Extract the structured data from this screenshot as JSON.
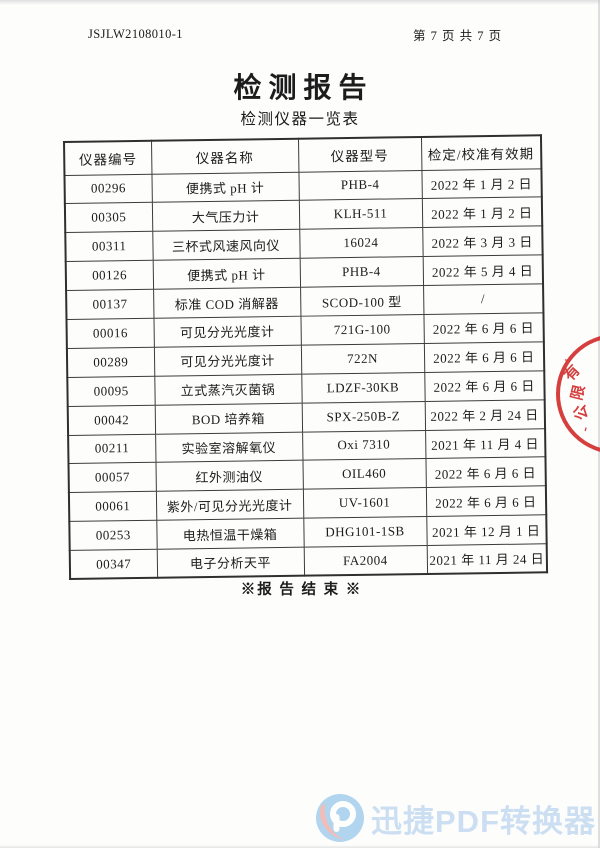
{
  "page": {
    "doc_code": "JSJLW2108010-1",
    "page_indicator": "第 7 页 共 7 页"
  },
  "title": "检测报告",
  "subtitle": "检测仪器一览表",
  "table": {
    "headers": [
      "仪器编号",
      "仪器名称",
      "仪器型号",
      "检定/校准有效期"
    ],
    "rows": [
      [
        "00296",
        "便携式 pH 计",
        "PHB-4",
        "2022 年 1 月 2 日"
      ],
      [
        "00305",
        "大气压力计",
        "KLH-511",
        "2022 年 1 月 2 日"
      ],
      [
        "00311",
        "三杯式风速风向仪",
        "16024",
        "2022 年 3 月 3 日"
      ],
      [
        "00126",
        "便携式 pH 计",
        "PHB-4",
        "2022 年 5 月 4 日"
      ],
      [
        "00137",
        "标准 COD 消解器",
        "SCOD-100 型",
        "/"
      ],
      [
        "00016",
        "可见分光光度计",
        "721G-100",
        "2022 年 6 月 6 日"
      ],
      [
        "00289",
        "可见分光光度计",
        "722N",
        "2022 年 6 月 6 日"
      ],
      [
        "00095",
        "立式蒸汽灭菌锅",
        "LDZF-30KB",
        "2022 年 6 月 6 日"
      ],
      [
        "00042",
        "BOD 培养箱",
        "SPX-250B-Z",
        "2022 年 2 月 24 日"
      ],
      [
        "00211",
        "实验室溶解氧仪",
        "Oxi 7310",
        "2021 年 11 月 4 日"
      ],
      [
        "00057",
        "红外测油仪",
        "OIL460",
        "2022 年 6 月 6 日"
      ],
      [
        "00061",
        "紫外/可见分光光度计",
        "UV-1601",
        "2022 年 6 月 6 日"
      ],
      [
        "00253",
        "电热恒温干燥箱",
        "DHG101-1SB",
        "2021 年 12 月 1 日"
      ],
      [
        "00347",
        "电子分析天平",
        "FA2004",
        "2021 年 11 月 24 日"
      ]
    ],
    "column_names": [
      "instrument-id",
      "instrument-name",
      "instrument-model",
      "calibration-validity"
    ]
  },
  "footer": {
    "end_note": "※报 告 结 束 ※"
  },
  "stamp": {
    "chars": [
      "有",
      "限",
      "公"
    ],
    "marks": [
      "、",
      "、"
    ],
    "color": "#d2302f"
  },
  "watermark": {
    "label": "迅捷PDF转换器",
    "brand_blue": "#74b4e6",
    "brand_red": "#e8897e"
  }
}
